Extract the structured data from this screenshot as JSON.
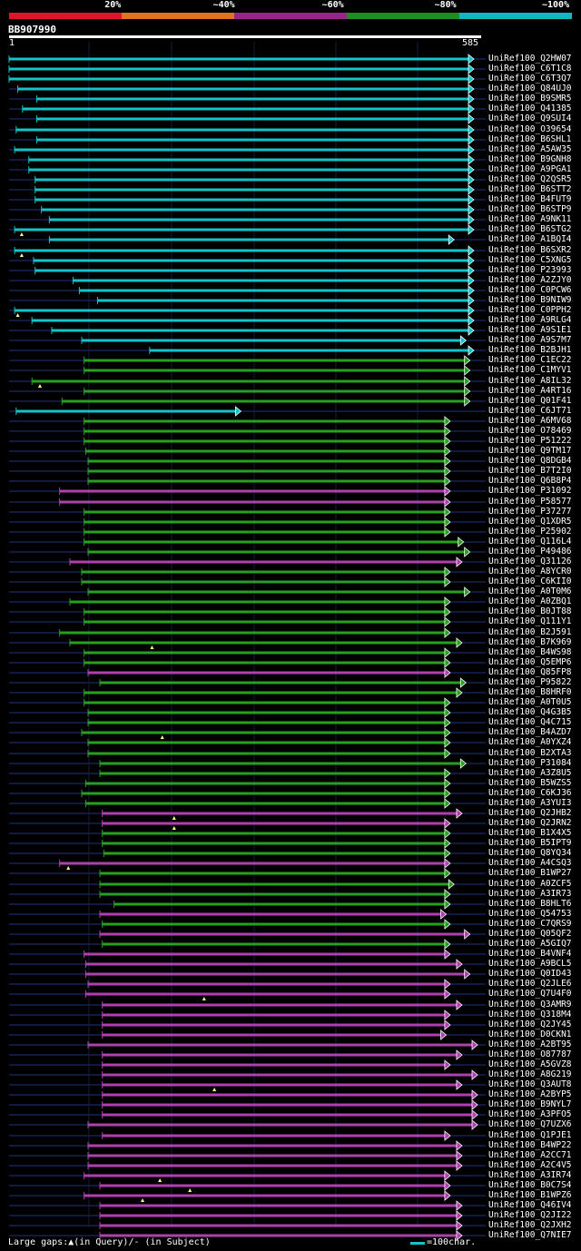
{
  "scale": {
    "segments": [
      {
        "label": "20%",
        "color": "#e0142a"
      },
      {
        "label": "~40%",
        "color": "#e0741e"
      },
      {
        "label": "~60%",
        "color": "#96258e"
      },
      {
        "label": "~80%",
        "color": "#1f8e1e"
      },
      {
        "label": "~100%",
        "color": "#12b8c0"
      }
    ]
  },
  "query": {
    "id": "BB907990",
    "start": "1",
    "end": "585",
    "length": 585
  },
  "colors": {
    "cyan": "#12c4c8",
    "green": "#27a020",
    "purple": "#b040b0",
    "track": "#101a40",
    "gap": "#ffff80"
  },
  "hits": [
    {
      "name": "UniRef100_Q2HW07",
      "color": "cyan",
      "start": 1,
      "end": 585
    },
    {
      "name": "UniRef100_C6T1C8",
      "color": "cyan",
      "start": 1,
      "end": 585
    },
    {
      "name": "UniRef100_C6T3Q7",
      "color": "cyan",
      "start": 1,
      "end": 585
    },
    {
      "name": "UniRef100_Q84UJ0",
      "color": "cyan",
      "start": 12,
      "end": 585
    },
    {
      "name": "UniRef100_B9SMR5",
      "color": "cyan",
      "start": 36,
      "end": 585
    },
    {
      "name": "UniRef100_Q41385",
      "color": "cyan",
      "start": 18,
      "end": 585
    },
    {
      "name": "UniRef100_Q9SUI4",
      "color": "cyan",
      "start": 36,
      "end": 585
    },
    {
      "name": "UniRef100_O39654",
      "color": "cyan",
      "start": 10,
      "end": 585
    },
    {
      "name": "UniRef100_B6SHL1",
      "color": "cyan",
      "start": 36,
      "end": 585
    },
    {
      "name": "UniRef100_A5AW35",
      "color": "cyan",
      "start": 8,
      "end": 585
    },
    {
      "name": "UniRef100_B9GNH8",
      "color": "cyan",
      "start": 26,
      "end": 585
    },
    {
      "name": "UniRef100_A9PGA1",
      "color": "cyan",
      "start": 26,
      "end": 585
    },
    {
      "name": "UniRef100_Q2QSR5",
      "color": "cyan",
      "start": 34,
      "end": 585
    },
    {
      "name": "UniRef100_B6STT2",
      "color": "cyan",
      "start": 34,
      "end": 585
    },
    {
      "name": "UniRef100_B4FUT9",
      "color": "cyan",
      "start": 34,
      "end": 585
    },
    {
      "name": "UniRef100_B6STP9",
      "color": "cyan",
      "start": 42,
      "end": 585
    },
    {
      "name": "UniRef100_A9NK11",
      "color": "cyan",
      "start": 52,
      "end": 585
    },
    {
      "name": "UniRef100_B6STG2",
      "color": "cyan",
      "start": 8,
      "end": 585,
      "gap": 17
    },
    {
      "name": "UniRef100_A1BQI4",
      "color": "cyan",
      "start": 52,
      "end": 560
    },
    {
      "name": "UniRef100_B6SXR2",
      "color": "cyan",
      "start": 8,
      "end": 585,
      "gap": 17
    },
    {
      "name": "UniRef100_C5XNG5",
      "color": "cyan",
      "start": 32,
      "end": 585
    },
    {
      "name": "UniRef100_P23993",
      "color": "cyan",
      "start": 34,
      "end": 585
    },
    {
      "name": "UniRef100_A2ZJY0",
      "color": "cyan",
      "start": 82,
      "end": 585
    },
    {
      "name": "UniRef100_C0PCW6",
      "color": "cyan",
      "start": 90,
      "end": 585
    },
    {
      "name": "UniRef100_B9NIW9",
      "color": "cyan",
      "start": 113,
      "end": 585
    },
    {
      "name": "UniRef100_C0PPH2",
      "color": "cyan",
      "start": 8,
      "end": 585,
      "gap": 12
    },
    {
      "name": "UniRef100_A9RLG4",
      "color": "cyan",
      "start": 30,
      "end": 585
    },
    {
      "name": "UniRef100_A9S1E1",
      "color": "cyan",
      "start": 55,
      "end": 585
    },
    {
      "name": "UniRef100_A9S7M7",
      "color": "cyan",
      "start": 93,
      "end": 575
    },
    {
      "name": "UniRef100_B2BJH1",
      "color": "cyan",
      "start": 179,
      "end": 585
    },
    {
      "name": "UniRef100_C1EC22",
      "color": "green",
      "start": 96,
      "end": 580
    },
    {
      "name": "UniRef100_C1MYV1",
      "color": "green",
      "start": 96,
      "end": 580
    },
    {
      "name": "UniRef100_A8IL32",
      "color": "green",
      "start": 30,
      "end": 580,
      "gap": 40
    },
    {
      "name": "UniRef100_A4RT16",
      "color": "green",
      "start": 96,
      "end": 580
    },
    {
      "name": "UniRef100_Q01F41",
      "color": "green",
      "start": 68,
      "end": 580
    },
    {
      "name": "UniRef100_C6JT71",
      "color": "cyan",
      "start": 10,
      "end": 290
    },
    {
      "name": "UniRef100_A6MV68",
      "color": "green",
      "start": 96,
      "end": 555
    },
    {
      "name": "UniRef100_O78469",
      "color": "green",
      "start": 96,
      "end": 555
    },
    {
      "name": "UniRef100_P51222",
      "color": "green",
      "start": 96,
      "end": 555
    },
    {
      "name": "UniRef100_Q9TM17",
      "color": "green",
      "start": 98,
      "end": 555
    },
    {
      "name": "UniRef100_Q8DGB4",
      "color": "green",
      "start": 101,
      "end": 555
    },
    {
      "name": "UniRef100_B7T2I0",
      "color": "green",
      "start": 101,
      "end": 555
    },
    {
      "name": "UniRef100_Q6B8P4",
      "color": "green",
      "start": 101,
      "end": 555
    },
    {
      "name": "UniRef100_P31092",
      "color": "purple",
      "start": 65,
      "end": 555
    },
    {
      "name": "UniRef100_P58577",
      "color": "purple",
      "start": 65,
      "end": 555
    },
    {
      "name": "UniRef100_P37277",
      "color": "green",
      "start": 96,
      "end": 555
    },
    {
      "name": "UniRef100_Q1XDR5",
      "color": "green",
      "start": 96,
      "end": 555
    },
    {
      "name": "UniRef100_P25902",
      "color": "green",
      "start": 96,
      "end": 555
    },
    {
      "name": "UniRef100_Q116L4",
      "color": "green",
      "start": 96,
      "end": 572
    },
    {
      "name": "UniRef100_P49486",
      "color": "green",
      "start": 101,
      "end": 580
    },
    {
      "name": "UniRef100_Q31126",
      "color": "purple",
      "start": 78,
      "end": 570
    },
    {
      "name": "UniRef100_A8YCR0",
      "color": "green",
      "start": 93,
      "end": 555
    },
    {
      "name": "UniRef100_C6KII0",
      "color": "green",
      "start": 93,
      "end": 555
    },
    {
      "name": "UniRef100_A0T0M6",
      "color": "green",
      "start": 101,
      "end": 580
    },
    {
      "name": "UniRef100_A0ZBQ1",
      "color": "green",
      "start": 78,
      "end": 555
    },
    {
      "name": "UniRef100_B0JT88",
      "color": "green",
      "start": 96,
      "end": 555
    },
    {
      "name": "UniRef100_Q111Y1",
      "color": "green",
      "start": 96,
      "end": 555
    },
    {
      "name": "UniRef100_B2J591",
      "color": "green",
      "start": 65,
      "end": 555
    },
    {
      "name": "UniRef100_B7K969",
      "color": "green",
      "start": 78,
      "end": 570,
      "gap": 182
    },
    {
      "name": "UniRef100_B4WS98",
      "color": "green",
      "start": 96,
      "end": 555
    },
    {
      "name": "UniRef100_Q5EMP6",
      "color": "green",
      "start": 96,
      "end": 555
    },
    {
      "name": "UniRef100_Q85FP8",
      "color": "purple",
      "start": 101,
      "end": 555
    },
    {
      "name": "UniRef100_P95822",
      "color": "green",
      "start": 116,
      "end": 575
    },
    {
      "name": "UniRef100_B8HRF0",
      "color": "green",
      "start": 96,
      "end": 570
    },
    {
      "name": "UniRef100_A0T0U5",
      "color": "green",
      "start": 96,
      "end": 555
    },
    {
      "name": "UniRef100_Q4G3B5",
      "color": "green",
      "start": 101,
      "end": 555
    },
    {
      "name": "UniRef100_Q4C715",
      "color": "green",
      "start": 101,
      "end": 555
    },
    {
      "name": "UniRef100_B4AZD7",
      "color": "green",
      "start": 93,
      "end": 555,
      "gap": 195
    },
    {
      "name": "UniRef100_A0YXZ4",
      "color": "green",
      "start": 101,
      "end": 555
    },
    {
      "name": "UniRef100_B2XTA3",
      "color": "green",
      "start": 101,
      "end": 555
    },
    {
      "name": "UniRef100_P31084",
      "color": "green",
      "start": 116,
      "end": 575
    },
    {
      "name": "UniRef100_A3Z8U5",
      "color": "green",
      "start": 116,
      "end": 555
    },
    {
      "name": "UniRef100_B5WZS5",
      "color": "green",
      "start": 98,
      "end": 555
    },
    {
      "name": "UniRef100_C6KJ36",
      "color": "green",
      "start": 93,
      "end": 555
    },
    {
      "name": "UniRef100_A3YUI3",
      "color": "green",
      "start": 98,
      "end": 555
    },
    {
      "name": "UniRef100_Q2JHB2",
      "color": "purple",
      "start": 119,
      "end": 570,
      "gap": 210
    },
    {
      "name": "UniRef100_Q2JRN2",
      "color": "purple",
      "start": 119,
      "end": 555,
      "gap": 210
    },
    {
      "name": "UniRef100_B1X4X5",
      "color": "green",
      "start": 119,
      "end": 555
    },
    {
      "name": "UniRef100_B5IPT9",
      "color": "green",
      "start": 119,
      "end": 555
    },
    {
      "name": "UniRef100_Q8YQ34",
      "color": "green",
      "start": 121,
      "end": 555
    },
    {
      "name": "UniRef100_A4CSQ3",
      "color": "purple",
      "start": 65,
      "end": 555,
      "gap": 76
    },
    {
      "name": "UniRef100_B1WP27",
      "color": "green",
      "start": 116,
      "end": 555
    },
    {
      "name": "UniRef100_A0ZCF5",
      "color": "green",
      "start": 116,
      "end": 560
    },
    {
      "name": "UniRef100_A3IR73",
      "color": "green",
      "start": 116,
      "end": 555
    },
    {
      "name": "UniRef100_B8HLT6",
      "color": "green",
      "start": 134,
      "end": 555
    },
    {
      "name": "UniRef100_Q54753",
      "color": "purple",
      "start": 116,
      "end": 550
    },
    {
      "name": "UniRef100_C7QRS9",
      "color": "green",
      "start": 119,
      "end": 555
    },
    {
      "name": "UniRef100_Q05QF2",
      "color": "purple",
      "start": 116,
      "end": 580
    },
    {
      "name": "UniRef100_A5GIQ7",
      "color": "green",
      "start": 119,
      "end": 555
    },
    {
      "name": "UniRef100_B4VNF4",
      "color": "purple",
      "start": 96,
      "end": 555
    },
    {
      "name": "UniRef100_A9BCL5",
      "color": "purple",
      "start": 98,
      "end": 570
    },
    {
      "name": "UniRef100_Q0ID43",
      "color": "purple",
      "start": 98,
      "end": 580
    },
    {
      "name": "UniRef100_Q2JLE6",
      "color": "purple",
      "start": 101,
      "end": 555
    },
    {
      "name": "UniRef100_Q7U4F0",
      "color": "purple",
      "start": 98,
      "end": 555,
      "gap": 248
    },
    {
      "name": "UniRef100_Q3AMR9",
      "color": "purple",
      "start": 119,
      "end": 570
    },
    {
      "name": "UniRef100_Q318M4",
      "color": "purple",
      "start": 119,
      "end": 555
    },
    {
      "name": "UniRef100_Q2JY45",
      "color": "purple",
      "start": 119,
      "end": 555
    },
    {
      "name": "UniRef100_D0CKN1",
      "color": "purple",
      "start": 119,
      "end": 550
    },
    {
      "name": "UniRef100_A2BT95",
      "color": "purple",
      "start": 101,
      "end": 595
    },
    {
      "name": "UniRef100_O87787",
      "color": "purple",
      "start": 119,
      "end": 570
    },
    {
      "name": "UniRef100_A5GVZ8",
      "color": "purple",
      "start": 119,
      "end": 555
    },
    {
      "name": "UniRef100_A8G219",
      "color": "purple",
      "start": 119,
      "end": 595
    },
    {
      "name": "UniRef100_Q3AUT8",
      "color": "purple",
      "start": 119,
      "end": 570,
      "gap": 261
    },
    {
      "name": "UniRef100_A2BYP5",
      "color": "purple",
      "start": 119,
      "end": 595
    },
    {
      "name": "UniRef100_B9NYL7",
      "color": "purple",
      "start": 119,
      "end": 595
    },
    {
      "name": "UniRef100_A3PFO5",
      "color": "purple",
      "start": 119,
      "end": 595
    },
    {
      "name": "UniRef100_Q7UZX6",
      "color": "purple",
      "start": 101,
      "end": 595
    },
    {
      "name": "UniRef100_Q1PJE1",
      "color": "purple",
      "start": 119,
      "end": 555
    },
    {
      "name": "UniRef100_B4WP22",
      "color": "purple",
      "start": 101,
      "end": 570
    },
    {
      "name": "UniRef100_A2CC71",
      "color": "purple",
      "start": 101,
      "end": 570
    },
    {
      "name": "UniRef100_A2C4V5",
      "color": "purple",
      "start": 101,
      "end": 570
    },
    {
      "name": "UniRef100_A3IR74",
      "color": "purple",
      "start": 96,
      "end": 555,
      "gap": 192
    },
    {
      "name": "UniRef100_B0C7S4",
      "color": "purple",
      "start": 116,
      "end": 555,
      "gap": 230
    },
    {
      "name": "UniRef100_B1WPZ6",
      "color": "purple",
      "start": 96,
      "end": 555,
      "gap": 170
    },
    {
      "name": "UniRef100_Q46IV4",
      "color": "purple",
      "start": 116,
      "end": 570
    },
    {
      "name": "UniRef100_Q2JI22",
      "color": "purple",
      "start": 116,
      "end": 570
    },
    {
      "name": "UniRef100_Q2JXH2",
      "color": "purple",
      "start": 116,
      "end": 570
    },
    {
      "name": "UniRef100_Q7NIE7",
      "color": "purple",
      "start": 116,
      "end": 570
    }
  ],
  "legend": {
    "text": "Large gaps:▲(in Query)/- (in Subject)",
    "unit": "=100char."
  }
}
